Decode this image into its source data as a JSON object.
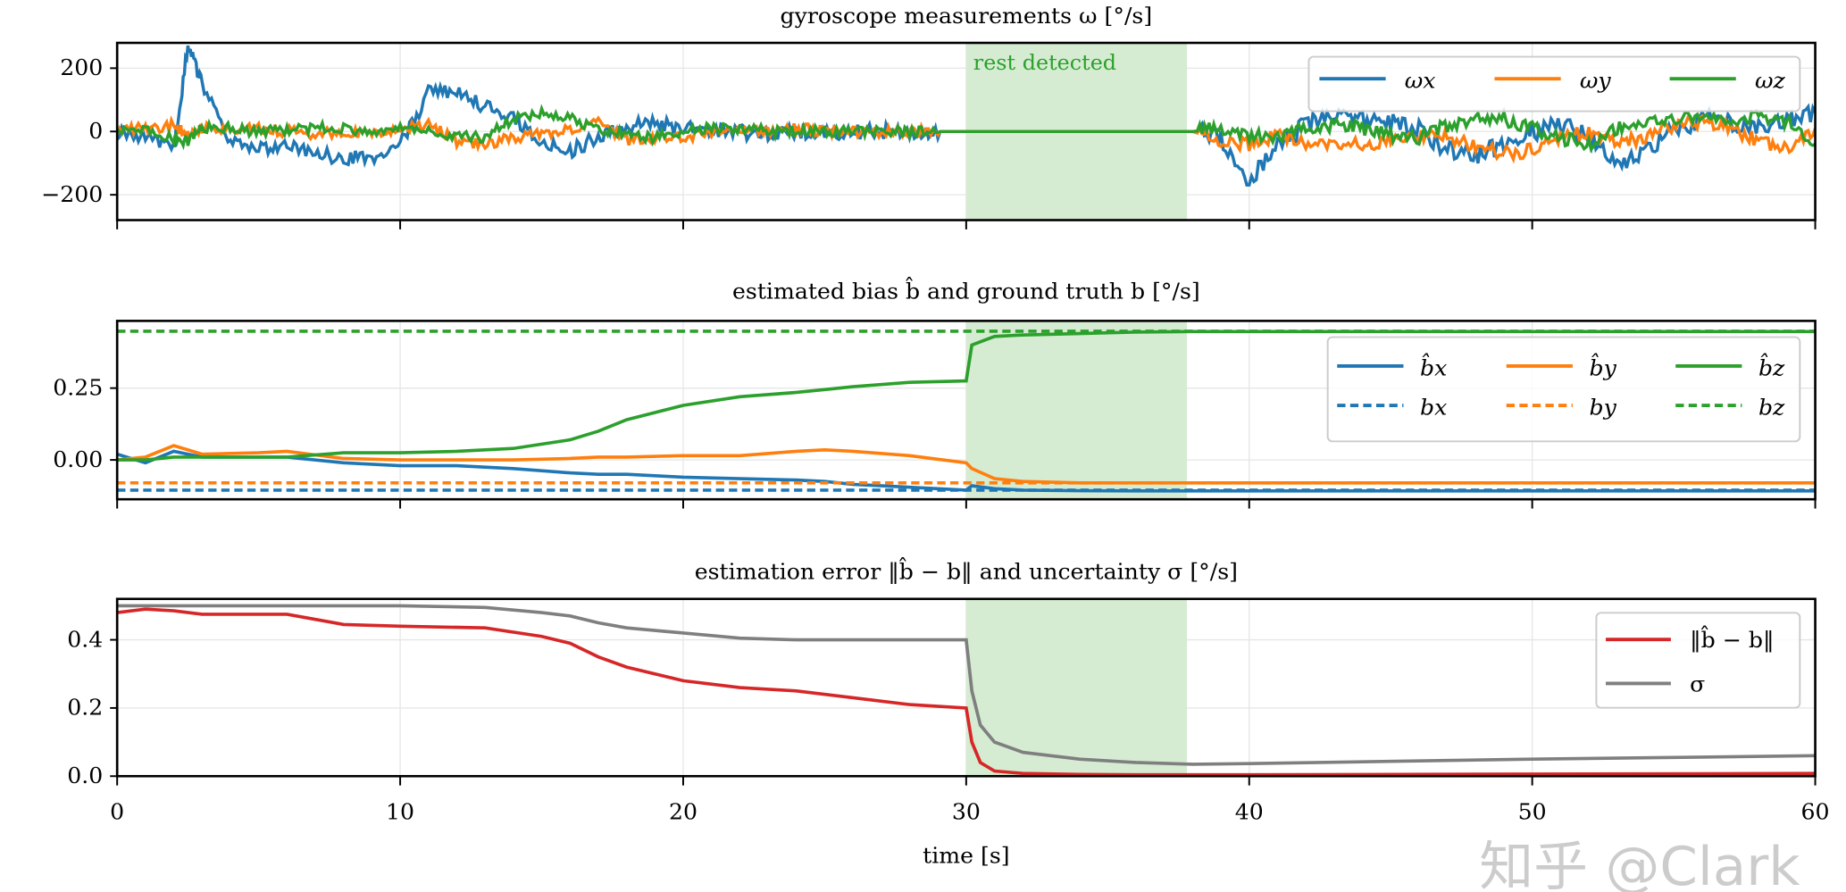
{
  "watermark": "知乎 @Clark",
  "chart_data": [
    {
      "type": "line",
      "title": "gyroscope measurements ω [°/s]",
      "ylim": [
        -280,
        280
      ],
      "xlim": [
        0,
        60
      ],
      "yticks": [
        -200,
        0,
        200
      ],
      "ytick_labels": [
        "−200",
        "0",
        "200"
      ],
      "grid": true,
      "legend": "top-right",
      "shaded_region": {
        "x": [
          30,
          37.8
        ],
        "label": "rest detected",
        "color": "#d5ecd2"
      },
      "x": [
        0,
        1,
        2,
        2.5,
        3,
        4,
        5,
        6,
        7,
        8,
        9,
        10,
        11,
        12,
        13,
        14,
        15,
        16,
        17,
        18,
        19,
        20,
        21,
        22,
        23,
        24,
        25,
        26,
        27,
        28,
        29,
        30,
        31,
        32,
        33,
        34,
        35,
        36,
        37,
        38,
        39,
        40,
        41,
        42,
        43,
        44,
        45,
        46,
        47,
        48,
        49,
        50,
        51,
        52,
        53,
        54,
        55,
        56,
        57,
        58,
        59,
        60
      ],
      "series": [
        {
          "name": "ωx",
          "color": "#1f77b4",
          "values": [
            0,
            -10,
            -60,
            270,
            150,
            -40,
            -60,
            -50,
            -60,
            -90,
            -80,
            -40,
            120,
            130,
            80,
            50,
            -30,
            -60,
            -20,
            20,
            20,
            10,
            10,
            0,
            -10,
            0,
            0,
            0,
            0,
            0,
            0,
            0,
            0,
            0,
            0,
            0,
            0,
            0,
            0,
            0,
            -20,
            -150,
            -40,
            20,
            50,
            40,
            30,
            10,
            -60,
            -80,
            -40,
            0,
            20,
            -20,
            -100,
            -60,
            0,
            40,
            30,
            20,
            30,
            60
          ]
        },
        {
          "name": "ωy",
          "color": "#ff7f0e",
          "values": [
            0,
            10,
            20,
            -10,
            10,
            0,
            10,
            0,
            -10,
            0,
            -10,
            10,
            20,
            -30,
            -40,
            -20,
            -10,
            10,
            30,
            -30,
            -20,
            -20,
            -10,
            0,
            0,
            10,
            0,
            0,
            0,
            0,
            0,
            0,
            0,
            0,
            0,
            0,
            0,
            0,
            0,
            0,
            -30,
            -40,
            -10,
            -40,
            -50,
            -40,
            -30,
            -10,
            -20,
            -50,
            -70,
            -60,
            -20,
            0,
            -30,
            -20,
            20,
            30,
            10,
            -30,
            -60,
            10
          ]
        },
        {
          "name": "ωz",
          "color": "#2ca02c",
          "values": [
            0,
            10,
            -20,
            -30,
            10,
            10,
            0,
            0,
            10,
            10,
            0,
            10,
            0,
            -10,
            -20,
            40,
            60,
            40,
            10,
            -10,
            -20,
            0,
            10,
            10,
            0,
            0,
            0,
            0,
            0,
            0,
            0,
            0,
            0,
            0,
            0,
            0,
            0,
            0,
            0,
            0,
            10,
            -10,
            -20,
            10,
            20,
            10,
            -10,
            -20,
            20,
            40,
            40,
            10,
            -20,
            -40,
            10,
            30,
            40,
            40,
            30,
            50,
            30,
            -40
          ]
        }
      ]
    },
    {
      "type": "line",
      "title": "estimated bias b̂ and ground truth b [°/s]",
      "ylim": [
        -0.137,
        0.484
      ],
      "xlim": [
        0,
        60
      ],
      "yticks": [
        0,
        0.25
      ],
      "ytick_labels": [
        "0.00",
        "0.25"
      ],
      "grid": true,
      "legend": "right",
      "x": [
        0,
        1,
        2,
        3,
        5,
        6,
        8,
        10,
        12,
        14,
        16,
        17,
        18,
        20,
        22,
        24,
        25,
        26,
        28,
        30,
        30.2,
        31,
        32,
        34,
        36,
        38,
        40,
        50,
        60
      ],
      "series": [
        {
          "name": "b̂x",
          "color": "#1f77b4",
          "style": "solid",
          "values": [
            0.02,
            -0.01,
            0.03,
            0.01,
            0.01,
            0.01,
            -0.01,
            -0.02,
            -0.02,
            -0.03,
            -0.045,
            -0.05,
            -0.05,
            -0.06,
            -0.065,
            -0.07,
            -0.075,
            -0.085,
            -0.095,
            -0.105,
            -0.09,
            -0.1,
            -0.105,
            -0.107,
            -0.108,
            -0.108,
            -0.108,
            -0.108,
            -0.108
          ]
        },
        {
          "name": "b̂y",
          "color": "#ff7f0e",
          "style": "solid",
          "values": [
            0,
            0.01,
            0.05,
            0.02,
            0.025,
            0.03,
            0.005,
            0.0,
            0.0,
            0.0,
            0.005,
            0.01,
            0.01,
            0.015,
            0.015,
            0.03,
            0.035,
            0.03,
            0.015,
            -0.01,
            -0.03,
            -0.065,
            -0.075,
            -0.08,
            -0.08,
            -0.08,
            -0.08,
            -0.08,
            -0.08
          ]
        },
        {
          "name": "b̂z",
          "color": "#2ca02c",
          "style": "solid",
          "values": [
            0,
            0.0,
            0.01,
            0.01,
            0.01,
            0.01,
            0.025,
            0.025,
            0.03,
            0.04,
            0.07,
            0.1,
            0.14,
            0.19,
            0.22,
            0.235,
            0.245,
            0.255,
            0.27,
            0.275,
            0.4,
            0.43,
            0.435,
            0.44,
            0.445,
            0.447,
            0.447,
            0.447,
            0.447
          ]
        },
        {
          "name": "bx",
          "color": "#1f77b4",
          "style": "dashed",
          "values": [
            -0.105,
            -0.105,
            -0.105,
            -0.105,
            -0.105,
            -0.105,
            -0.105,
            -0.105,
            -0.105,
            -0.105,
            -0.105,
            -0.105,
            -0.105,
            -0.105,
            -0.105,
            -0.105,
            -0.105,
            -0.105,
            -0.105,
            -0.105,
            -0.105,
            -0.105,
            -0.105,
            -0.105,
            -0.105,
            -0.105,
            -0.105,
            -0.105,
            -0.105
          ]
        },
        {
          "name": "by",
          "color": "#ff7f0e",
          "style": "dashed",
          "values": [
            -0.08,
            -0.08,
            -0.08,
            -0.08,
            -0.08,
            -0.08,
            -0.08,
            -0.08,
            -0.08,
            -0.08,
            -0.08,
            -0.08,
            -0.08,
            -0.08,
            -0.08,
            -0.08,
            -0.08,
            -0.08,
            -0.08,
            -0.08,
            -0.08,
            -0.08,
            -0.08,
            -0.08,
            -0.08,
            -0.08,
            -0.08,
            -0.08,
            -0.08
          ]
        },
        {
          "name": "bz",
          "color": "#2ca02c",
          "style": "dashed",
          "values": [
            0.448,
            0.448,
            0.448,
            0.448,
            0.448,
            0.448,
            0.448,
            0.448,
            0.448,
            0.448,
            0.448,
            0.448,
            0.448,
            0.448,
            0.448,
            0.448,
            0.448,
            0.448,
            0.448,
            0.448,
            0.448,
            0.448,
            0.448,
            0.448,
            0.448,
            0.448,
            0.448,
            0.448,
            0.448
          ]
        }
      ]
    },
    {
      "type": "line",
      "title": "estimation error ‖b̂ − b‖ and uncertainty σ [°/s]",
      "xlabel": "time [s]",
      "ylim": [
        0,
        0.52
      ],
      "xlim": [
        0,
        60
      ],
      "yticks": [
        0,
        0.2,
        0.4
      ],
      "ytick_labels": [
        "0.0",
        "0.2",
        "0.4"
      ],
      "xticks": [
        0,
        10,
        20,
        30,
        40,
        50,
        60
      ],
      "xtick_labels": [
        "0",
        "10",
        "20",
        "30",
        "40",
        "50",
        "60"
      ],
      "grid": true,
      "legend": "top-right",
      "x": [
        0,
        1,
        2,
        3,
        6,
        8,
        10,
        13,
        15,
        16,
        17,
        18,
        20,
        22,
        24,
        26,
        28,
        30,
        30.2,
        30.5,
        31,
        32,
        34,
        36,
        38,
        40,
        50,
        60
      ],
      "series": [
        {
          "name": "‖b̂ − b‖",
          "color": "#d62728",
          "values": [
            0.48,
            0.49,
            0.485,
            0.475,
            0.475,
            0.445,
            0.44,
            0.435,
            0.41,
            0.39,
            0.35,
            0.32,
            0.28,
            0.26,
            0.25,
            0.23,
            0.21,
            0.2,
            0.1,
            0.04,
            0.015,
            0.008,
            0.005,
            0.004,
            0.004,
            0.004,
            0.006,
            0.008
          ]
        },
        {
          "name": "σ",
          "color": "#7f7f7f",
          "values": [
            0.5,
            0.5,
            0.5,
            0.5,
            0.5,
            0.5,
            0.5,
            0.495,
            0.48,
            0.47,
            0.45,
            0.435,
            0.42,
            0.405,
            0.4,
            0.4,
            0.4,
            0.4,
            0.25,
            0.15,
            0.1,
            0.07,
            0.05,
            0.04,
            0.035,
            0.037,
            0.05,
            0.06
          ]
        }
      ]
    }
  ]
}
